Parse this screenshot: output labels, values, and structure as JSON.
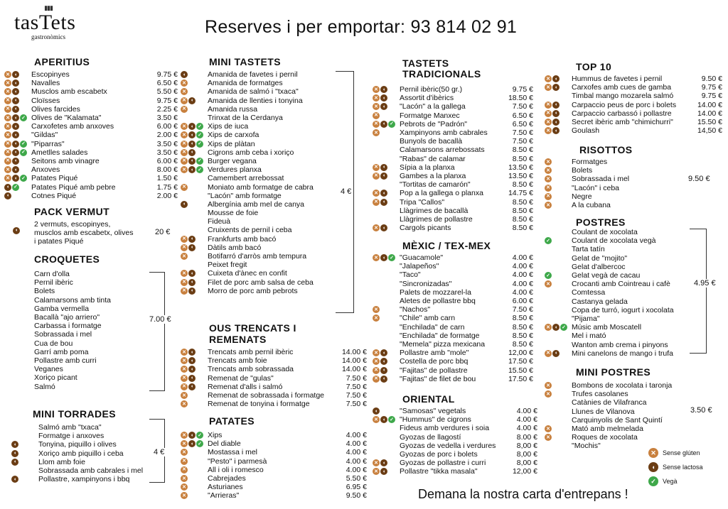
{
  "brand": {
    "name": "tasTets",
    "tagline": "gastronòmics"
  },
  "headline": "Reserves i per emportar: 93 814 02 91",
  "footer": "Demana la nostra carta d'entrepans !",
  "legend": [
    {
      "icon": "gluten-free-icon",
      "label": "Sense glúten"
    },
    {
      "icon": "lactose-free-icon",
      "label": "Sense lactosa"
    },
    {
      "icon": "vegan-icon",
      "label": "Vegà"
    }
  ],
  "aperitius": {
    "title": "APERITIUS",
    "items": [
      {
        "name": "Escopinyes",
        "price": "9.75 €"
      },
      {
        "name": "Navalles",
        "price": "6.50 €"
      },
      {
        "name": "Musclos amb escabetx",
        "price": "5.50 €"
      },
      {
        "name": "Cloïsses",
        "price": "9.75 €"
      },
      {
        "name": "Olives farcides",
        "price": "2.25 €"
      },
      {
        "name": "Olives de \"Kalamata\"",
        "price": "3.50 €"
      },
      {
        "name": "Carxofetes amb anxoves",
        "price": "6.00 €"
      },
      {
        "name": "\"Gildas\"",
        "price": "2.00 €"
      },
      {
        "name": "\"Piparras\"",
        "price": "3.50 €"
      },
      {
        "name": "Ametlles salades",
        "price": "3.50 €"
      },
      {
        "name": "Seitons amb vinagre",
        "price": "6.00 €"
      },
      {
        "name": "Anxoves",
        "price": "8.00 €"
      },
      {
        "name": "Patates Piqué",
        "price": "1.50 €"
      },
      {
        "name": "Patates Piqué amb pebre",
        "price": "1.75 €"
      },
      {
        "name": "Cotnes Piqué",
        "price": "2.00 €"
      }
    ]
  },
  "pack": {
    "title": "PACK VERMUT",
    "line1": "2 vermuts, escopinyes,",
    "line2": "musclos amb escabetx, olives",
    "line3": "i patates Piqué",
    "price": "20 €"
  },
  "croquetes": {
    "title": "CROQUETES",
    "price": "7.00 €",
    "items": [
      "Carn d'olla",
      "Pernil ibèric",
      "Bolets",
      "Calamarsons amb tinta",
      "Gamba vermella",
      "Bacallà \"ajo arriero\"",
      "Carbassa i formatge",
      "Sobrassada i mel",
      "Cua de bou",
      "Garrí amb poma",
      "Pollastre amb curri",
      "Veganes",
      "Xoriço picant",
      "Salmó"
    ]
  },
  "torrades": {
    "title": "MINI TORRADES",
    "price": "4 €",
    "items": [
      "Salmó amb \"txaca\"",
      "Formatge i anxoves",
      "Tonyina, piquillo i olives",
      "Xoriço amb piquillo i ceba",
      "Llom amb foie",
      "Sobrassada amb cabrales i mel",
      "Pollastre, xampinyons i bbq"
    ]
  },
  "mini_tastets": {
    "title": "MINI TASTETS",
    "price": "4 €",
    "items": [
      "Amanida de favetes i pernil",
      "Amanida de formatges",
      "Amanida de salmó i \"txaca\"",
      "Amanida de llenties i tonyina",
      "Amanida russa",
      "Trinxat de la Cerdanya",
      "Xips de iuca",
      "Xips de carxofa",
      "Xips de plàtan",
      "Cigrons amb ceba i xoriço",
      "Burger vegana",
      "Verdures planxa",
      "Camembert arrebossat",
      "Moniato amb formatge de cabra",
      "\"Lacón\" amb formatge",
      "Albergínia amb mel de canya",
      "Mousse de foie",
      "Fideuà",
      "Cruixents de pernil i ceba",
      "Frankfurts amb bacó",
      "Dàtils amb bacó",
      "Botifarró d'arròs amb tempura",
      "Peixet fregit",
      "Cuixeta d'ànec en confit",
      "Filet de porc amb salsa de ceba",
      "Morro de porc amb pebrots"
    ]
  },
  "ous": {
    "title1": "OUS TRENCATS I",
    "title2": "REMENATS",
    "items": [
      {
        "name": "Trencats amb pernil ibèric",
        "price": "14.00 €"
      },
      {
        "name": "Trencats amb foie",
        "price": "14.00 €"
      },
      {
        "name": "Trencats amb sobrassada",
        "price": "14.00 €"
      },
      {
        "name": "Remenat de \"gulas\"",
        "price": "7.50 €"
      },
      {
        "name": "Remenat d'alls i salmó",
        "price": "7.50 €"
      },
      {
        "name": "Remenat de sobrassada i formatge",
        "price": "7.50 €"
      },
      {
        "name": "Remenat de tonyina i formatge",
        "price": "7.50 €"
      }
    ]
  },
  "patates": {
    "title": "PATATES",
    "items": [
      {
        "name": "Xips",
        "price": "4.00 €"
      },
      {
        "name": "Del diable",
        "price": "4.00 €"
      },
      {
        "name": "Mostassa i mel",
        "price": "4.00 €"
      },
      {
        "name": "\"Pesto\" i parmesà",
        "price": "4.00 €"
      },
      {
        "name": "All i oli i romesco",
        "price": "4.00 €"
      },
      {
        "name": "Cabrejades",
        "price": "5.50 €"
      },
      {
        "name": "Asturianes",
        "price": "6.95 €"
      },
      {
        "name": "\"Arrieras\"",
        "price": "9.50 €"
      }
    ]
  },
  "tradicionals": {
    "title1": "TASTETS",
    "title2": "TRADICIONALS",
    "items": [
      {
        "name": "Pernil ibèric(50 gr.)",
        "price": "9.75 €"
      },
      {
        "name": "Assortit d'ibèrics",
        "price": "18.50 €"
      },
      {
        "name": "\"Lacón\" a la gallega",
        "price": "7.50 €"
      },
      {
        "name": "Formatge Manxec",
        "price": "6.50 €"
      },
      {
        "name": "Pebrots de \"Padrón\"",
        "price": "6.50 €"
      },
      {
        "name": "Xampinyons amb cabrales",
        "price": "7.50 €"
      },
      {
        "name": "Bunyols de bacallà",
        "price": "7.50 €"
      },
      {
        "name": "Calamarsons arrebossats",
        "price": "8.50 €"
      },
      {
        "name": "\"Rabas\" de calamar",
        "price": "8.50 €"
      },
      {
        "name": "Sípia a la planxa",
        "price": "13.50 €"
      },
      {
        "name": "Gambes a la planxa",
        "price": "13.50 €"
      },
      {
        "name": "\"Tortitas de camarón\"",
        "price": "8.50 €"
      },
      {
        "name": "Pop a la gallega o planxa",
        "price": "14.75 €"
      },
      {
        "name": "Tripa \"Callos\"",
        "price": "8.50 €"
      },
      {
        "name": "Llàgrimes de bacallà",
        "price": "8.50 €"
      },
      {
        "name": "Llàgrimes de pollastre",
        "price": "8.50 €"
      },
      {
        "name": "Cargols picants",
        "price": "8.50 €"
      }
    ]
  },
  "mexic": {
    "title": "MÈXIC / TEX-MEX",
    "items": [
      {
        "name": "\"Guacamole\"",
        "price": "4.00 €"
      },
      {
        "name": "\"Jalapeños\"",
        "price": "4.00 €"
      },
      {
        "name": "\"Taco\"",
        "price": "4.00 €"
      },
      {
        "name": "\"Sincronizadas\"",
        "price": "4.00 €"
      },
      {
        "name": "Palets de mozzarel-la",
        "price": "4.00 €"
      },
      {
        "name": "Aletes de pollastre bbq",
        "price": "6.00 €"
      },
      {
        "name": "\"Nachos\"",
        "price": "7.50 €"
      },
      {
        "name": "\"Chile\" amb carn",
        "price": "8.50 €"
      },
      {
        "name": "\"Enchilada\" de carn",
        "price": "8.50 €"
      },
      {
        "name": "\"Enchilada\" de formatge",
        "price": "8.50 €"
      },
      {
        "name": "\"Memela\" pizza mexicana",
        "price": "8.50 €"
      },
      {
        "name": "Pollastre amb \"mole\"",
        "price": "12,00 €"
      },
      {
        "name": "Costella de porc bbq",
        "price": "17.50 €"
      },
      {
        "name": "\"Fajitas\" de pollastre",
        "price": "15.50 €"
      },
      {
        "name": "\"Fajitas\" de filet de bou",
        "price": "17.50 €"
      }
    ]
  },
  "oriental": {
    "title": "ORIENTAL",
    "items": [
      {
        "name": "\"Samosas\" vegetals",
        "price": "4.00 €"
      },
      {
        "name": "\"Hummus\" de cigrons",
        "price": "4.00 €"
      },
      {
        "name": "Fideus amb verdures i soia",
        "price": "4.00 €"
      },
      {
        "name": "Gyozas de llagostí",
        "price": "8.00 €"
      },
      {
        "name": "Gyozas de vedella i verdures",
        "price": "8,00 €"
      },
      {
        "name": "Gyozas de porc i bolets",
        "price": "8,00 €"
      },
      {
        "name": "Gyozas de pollastre i curri",
        "price": "8,00 €"
      },
      {
        "name": "Pollastre \"tikka masala\"",
        "price": "12,00 €"
      }
    ]
  },
  "top10": {
    "title": "TOP 10",
    "items": [
      {
        "name": "Hummus de favetes i pernil",
        "price": "9.50 €"
      },
      {
        "name": "Carxofes amb cues de gamba",
        "price": "9.75 €"
      },
      {
        "name": "Timbal mango mozarela salmó",
        "price": "9.75 €"
      },
      {
        "name": "Carpaccio peus de porc i bolets",
        "price": "14.00 €"
      },
      {
        "name": "Carpaccio carbassó i pollastre",
        "price": "14.00 €"
      },
      {
        "name": "Secret ibèric amb \"chimichurri\"",
        "price": "15.50 €"
      },
      {
        "name": "Goulash",
        "price": "14,50 €"
      }
    ]
  },
  "risottos": {
    "title": "RISOTTOS",
    "price": "9.50 €",
    "items": [
      "Formatges",
      "Bolets",
      "Sobrassada i mel",
      "\"Lacón\" i ceba",
      "Negre",
      "A la cubana"
    ]
  },
  "postres": {
    "title": "POSTRES",
    "price": "4.95 €",
    "items": [
      "Coulant de xocolata",
      "Coulant de xocolata vegà",
      "Tarta tatín",
      "Gelat de \"mojito\"",
      "Gelat d'albercoc",
      "Gelat vegà de cacau",
      "Crocanti amb Cointreau i cafè",
      "Comtessa",
      "Castanya gelada",
      "Copa de turró, iogurt i xocolata",
      "\"Pijama\"",
      "Músic amb Moscatell",
      "Mel i mató",
      "Wanton amb crema i pinyons",
      "Mini canelons de mango i trufa"
    ]
  },
  "mini_postres": {
    "title": "MINI POSTRES",
    "price": "3.50 €",
    "items": [
      "Bombons de xocolata i taronja",
      "Trufes casolanes",
      "Catànies de Vilafranca",
      "Llunes de Vilanova",
      "Carquinyolis de Sant Quintí",
      "Mató amb melmelada",
      "Roques de xocolata",
      "\"Mochis\""
    ]
  }
}
